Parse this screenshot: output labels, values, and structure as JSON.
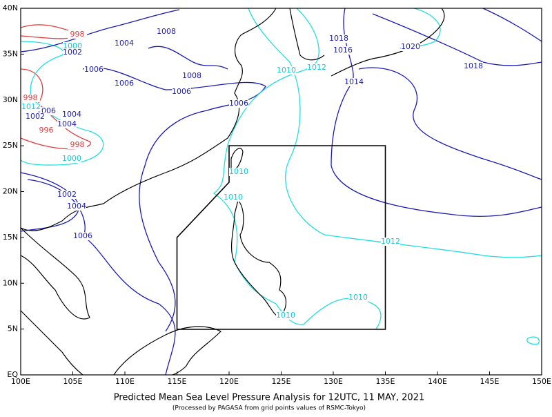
{
  "map": {
    "lon_ticks": [
      "100E",
      "105E",
      "110E",
      "115E",
      "120E",
      "125E",
      "130E",
      "135E",
      "140E",
      "145E",
      "150E"
    ],
    "lat_ticks": [
      "EQ",
      "5N",
      "10N",
      "15N",
      "20N",
      "25N",
      "30N",
      "35N",
      "40N"
    ],
    "isobar_labels": [
      "998",
      "1000",
      "1002",
      "1004",
      "1008",
      "1006",
      "1006",
      "1008",
      "1006",
      "1006",
      "998",
      "1006",
      "1004",
      "1002",
      "1004",
      "996",
      "998",
      "1000",
      "1010",
      "1002",
      "1004",
      "1010",
      "1006",
      "1012",
      "1010",
      "1010",
      "1010",
      "1012",
      "1014",
      "1016",
      "1018",
      "1020",
      "1018",
      "1012"
    ],
    "title": "Predicted Mean Sea Level Pressure Analysis for 12UTC, 11 MAY, 2021",
    "subtitle": "(Processed by PAGASA from grid points values of RSMC-Tokyo)"
  }
}
